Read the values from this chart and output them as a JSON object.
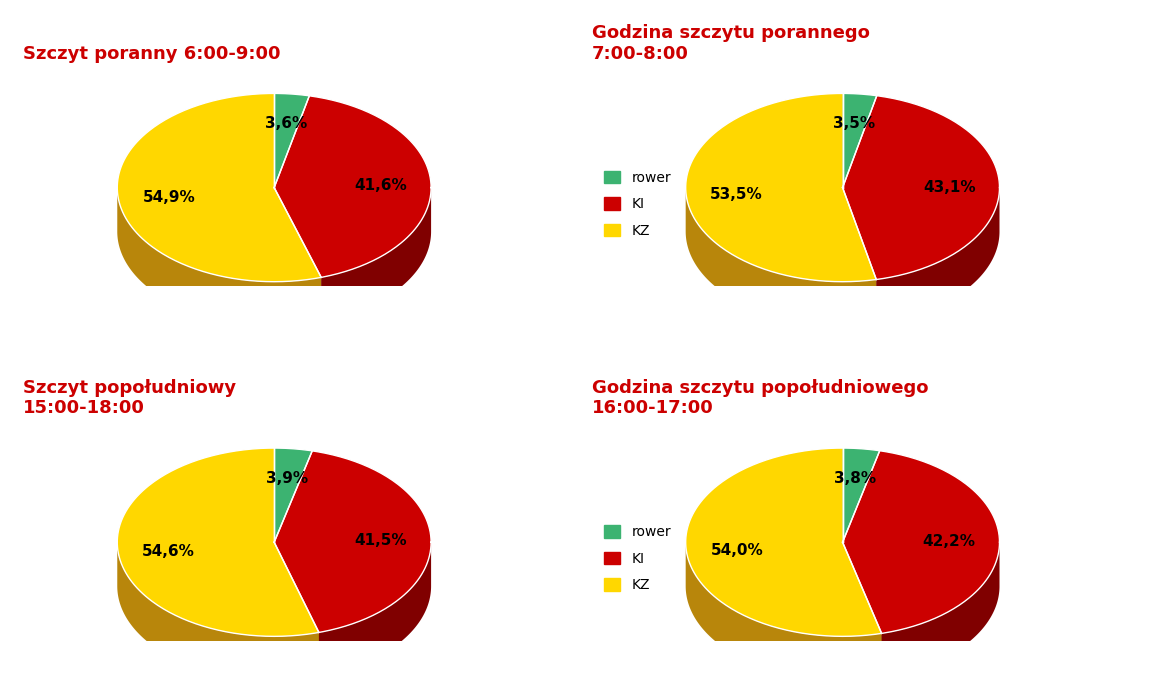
{
  "charts": [
    {
      "title": "Szczyt poranny 6:00-9:00",
      "values": [
        3.6,
        41.6,
        54.9
      ],
      "labels": [
        "3,6%",
        "41,6%",
        "54,9%"
      ],
      "row": 0,
      "col": 0
    },
    {
      "title": "Godzina szczytu porannego\n7:00-8:00",
      "values": [
        3.5,
        43.1,
        53.5
      ],
      "labels": [
        "3,5%",
        "43,1%",
        "53,5%"
      ],
      "row": 0,
      "col": 1
    },
    {
      "title": "Szczyt popołudniowy\n15:00-18:00",
      "values": [
        3.9,
        41.5,
        54.6
      ],
      "labels": [
        "3,9%",
        "41,5%",
        "54,6%"
      ],
      "row": 1,
      "col": 0
    },
    {
      "title": "Godzina szczytu popołudniowego\n16:00-17:00",
      "values": [
        3.8,
        42.2,
        54.0
      ],
      "labels": [
        "3,8%",
        "42,2%",
        "54,0%"
      ],
      "row": 1,
      "col": 1
    }
  ],
  "colors": [
    "#3CB371",
    "#CC0000",
    "#FFD700"
  ],
  "shadow_colors": [
    "#1a6b38",
    "#800000",
    "#B8860B"
  ],
  "legend_labels": [
    "rower",
    "KI",
    "KZ"
  ],
  "title_color": "#CC0000",
  "bg_color": "#FFFFFF",
  "title_fontsize": 13,
  "label_fontsize": 11,
  "legend_fontsize": 10
}
